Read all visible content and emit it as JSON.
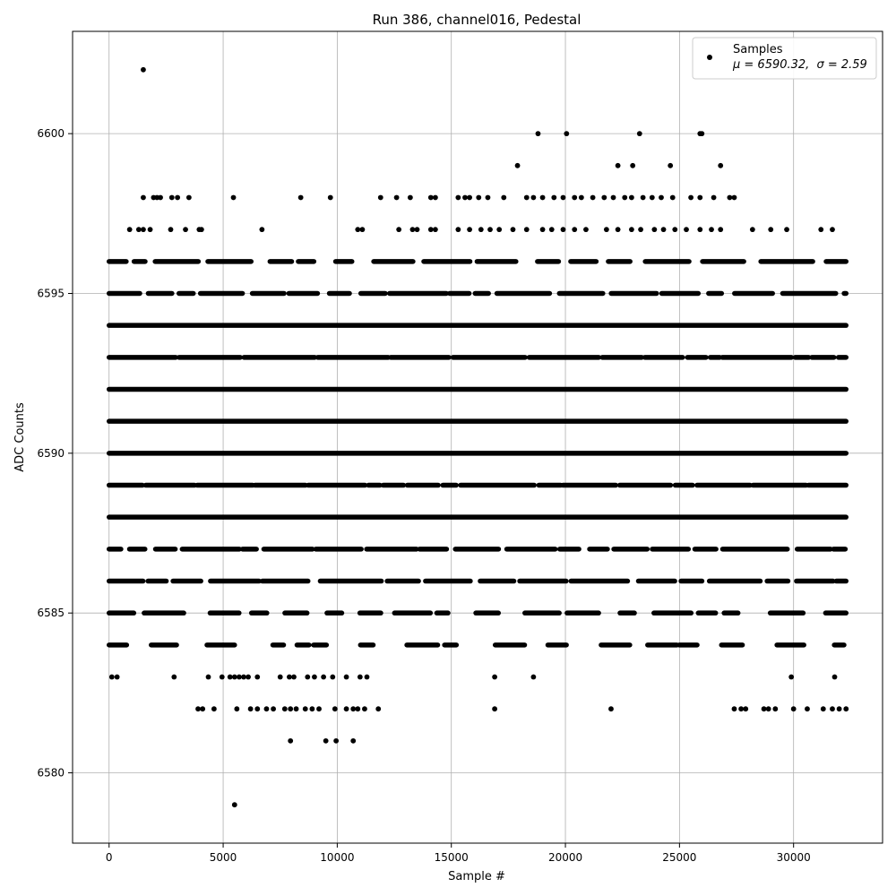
{
  "chart_data": {
    "type": "scatter",
    "title": "Run 386, channel016, Pedestal",
    "xlabel": "Sample #",
    "ylabel": "ADC Counts",
    "xlim": [
      -1600,
      33900
    ],
    "ylim": [
      6577.8,
      6603.2
    ],
    "xticks": [
      0,
      5000,
      10000,
      15000,
      20000,
      25000,
      30000
    ],
    "yticks": [
      6580,
      6585,
      6590,
      6595,
      6600
    ],
    "grid": true,
    "legend": {
      "position": "top-right",
      "series_name": "Samples",
      "stats_mu_label": "μ = 6590.32,",
      "stats_sigma_label": "σ = 2.59"
    },
    "marker_color": "#000000",
    "sample_count": 32300,
    "dense_levels": [
      6584,
      6585,
      6586,
      6587,
      6588,
      6589,
      6590,
      6591,
      6592,
      6593,
      6594,
      6595,
      6596
    ],
    "level_fill": {
      "6584": 0.35,
      "6585": 0.45,
      "6586": 0.8,
      "6587": 0.85,
      "6588": 1.0,
      "6589": 0.95,
      "6590": 1.0,
      "6591": 1.0,
      "6592": 1.0,
      "6593": 0.95,
      "6594": 1.0,
      "6595": 0.8,
      "6596": 0.65
    },
    "outliers": [
      {
        "x": 1500,
        "y": 6602
      },
      {
        "x": 18800,
        "y": 6600
      },
      {
        "x": 20050,
        "y": 6600
      },
      {
        "x": 23250,
        "y": 6600
      },
      {
        "x": 25900,
        "y": 6600
      },
      {
        "x": 25980,
        "y": 6600
      },
      {
        "x": 17900,
        "y": 6599
      },
      {
        "x": 22300,
        "y": 6599
      },
      {
        "x": 22950,
        "y": 6599
      },
      {
        "x": 24600,
        "y": 6599
      },
      {
        "x": 26800,
        "y": 6599
      },
      {
        "x": 1500,
        "y": 6598
      },
      {
        "x": 1950,
        "y": 6598
      },
      {
        "x": 2100,
        "y": 6598
      },
      {
        "x": 2250,
        "y": 6598
      },
      {
        "x": 2750,
        "y": 6598
      },
      {
        "x": 3000,
        "y": 6598
      },
      {
        "x": 3500,
        "y": 6598
      },
      {
        "x": 5450,
        "y": 6598
      },
      {
        "x": 8400,
        "y": 6598
      },
      {
        "x": 9700,
        "y": 6598
      },
      {
        "x": 11900,
        "y": 6598
      },
      {
        "x": 12600,
        "y": 6598
      },
      {
        "x": 13200,
        "y": 6598
      },
      {
        "x": 14100,
        "y": 6598
      },
      {
        "x": 14300,
        "y": 6598
      },
      {
        "x": 15300,
        "y": 6598
      },
      {
        "x": 15600,
        "y": 6598
      },
      {
        "x": 15800,
        "y": 6598
      },
      {
        "x": 16200,
        "y": 6598
      },
      {
        "x": 16600,
        "y": 6598
      },
      {
        "x": 17300,
        "y": 6598
      },
      {
        "x": 18300,
        "y": 6598
      },
      {
        "x": 18600,
        "y": 6598
      },
      {
        "x": 19000,
        "y": 6598
      },
      {
        "x": 19500,
        "y": 6598
      },
      {
        "x": 19900,
        "y": 6598
      },
      {
        "x": 20400,
        "y": 6598
      },
      {
        "x": 20700,
        "y": 6598
      },
      {
        "x": 21200,
        "y": 6598
      },
      {
        "x": 21700,
        "y": 6598
      },
      {
        "x": 22100,
        "y": 6598
      },
      {
        "x": 22600,
        "y": 6598
      },
      {
        "x": 22900,
        "y": 6598
      },
      {
        "x": 23400,
        "y": 6598
      },
      {
        "x": 23800,
        "y": 6598
      },
      {
        "x": 24200,
        "y": 6598
      },
      {
        "x": 24700,
        "y": 6598
      },
      {
        "x": 25500,
        "y": 6598
      },
      {
        "x": 25900,
        "y": 6598
      },
      {
        "x": 26500,
        "y": 6598
      },
      {
        "x": 27200,
        "y": 6598
      },
      {
        "x": 27400,
        "y": 6598
      },
      {
        "x": 900,
        "y": 6597
      },
      {
        "x": 1300,
        "y": 6597
      },
      {
        "x": 1500,
        "y": 6597
      },
      {
        "x": 1800,
        "y": 6597
      },
      {
        "x": 2700,
        "y": 6597
      },
      {
        "x": 3350,
        "y": 6597
      },
      {
        "x": 3950,
        "y": 6597
      },
      {
        "x": 4050,
        "y": 6597
      },
      {
        "x": 6700,
        "y": 6597
      },
      {
        "x": 10900,
        "y": 6597
      },
      {
        "x": 11100,
        "y": 6597
      },
      {
        "x": 12700,
        "y": 6597
      },
      {
        "x": 13300,
        "y": 6597
      },
      {
        "x": 13500,
        "y": 6597
      },
      {
        "x": 14100,
        "y": 6597
      },
      {
        "x": 14300,
        "y": 6597
      },
      {
        "x": 15300,
        "y": 6597
      },
      {
        "x": 15800,
        "y": 6597
      },
      {
        "x": 16300,
        "y": 6597
      },
      {
        "x": 16700,
        "y": 6597
      },
      {
        "x": 17100,
        "y": 6597
      },
      {
        "x": 17700,
        "y": 6597
      },
      {
        "x": 18300,
        "y": 6597
      },
      {
        "x": 19000,
        "y": 6597
      },
      {
        "x": 19400,
        "y": 6597
      },
      {
        "x": 19900,
        "y": 6597
      },
      {
        "x": 20400,
        "y": 6597
      },
      {
        "x": 20900,
        "y": 6597
      },
      {
        "x": 21800,
        "y": 6597
      },
      {
        "x": 22300,
        "y": 6597
      },
      {
        "x": 22900,
        "y": 6597
      },
      {
        "x": 23300,
        "y": 6597
      },
      {
        "x": 23900,
        "y": 6597
      },
      {
        "x": 24300,
        "y": 6597
      },
      {
        "x": 24800,
        "y": 6597
      },
      {
        "x": 25300,
        "y": 6597
      },
      {
        "x": 25900,
        "y": 6597
      },
      {
        "x": 26400,
        "y": 6597
      },
      {
        "x": 26800,
        "y": 6597
      },
      {
        "x": 28200,
        "y": 6597
      },
      {
        "x": 29000,
        "y": 6597
      },
      {
        "x": 29700,
        "y": 6597
      },
      {
        "x": 31200,
        "y": 6597
      },
      {
        "x": 31700,
        "y": 6597
      },
      {
        "x": 120,
        "y": 6583
      },
      {
        "x": 350,
        "y": 6583
      },
      {
        "x": 2850,
        "y": 6583
      },
      {
        "x": 4350,
        "y": 6583
      },
      {
        "x": 4950,
        "y": 6583
      },
      {
        "x": 5300,
        "y": 6583
      },
      {
        "x": 5500,
        "y": 6583
      },
      {
        "x": 5700,
        "y": 6583
      },
      {
        "x": 5900,
        "y": 6583
      },
      {
        "x": 6100,
        "y": 6583
      },
      {
        "x": 6500,
        "y": 6583
      },
      {
        "x": 7500,
        "y": 6583
      },
      {
        "x": 7900,
        "y": 6583
      },
      {
        "x": 8100,
        "y": 6583
      },
      {
        "x": 8700,
        "y": 6583
      },
      {
        "x": 9000,
        "y": 6583
      },
      {
        "x": 9400,
        "y": 6583
      },
      {
        "x": 9800,
        "y": 6583
      },
      {
        "x": 10400,
        "y": 6583
      },
      {
        "x": 11000,
        "y": 6583
      },
      {
        "x": 11300,
        "y": 6583
      },
      {
        "x": 16900,
        "y": 6583
      },
      {
        "x": 18600,
        "y": 6583
      },
      {
        "x": 29900,
        "y": 6583
      },
      {
        "x": 31800,
        "y": 6583
      },
      {
        "x": 3900,
        "y": 6582
      },
      {
        "x": 4100,
        "y": 6582
      },
      {
        "x": 4600,
        "y": 6582
      },
      {
        "x": 5600,
        "y": 6582
      },
      {
        "x": 6200,
        "y": 6582
      },
      {
        "x": 6500,
        "y": 6582
      },
      {
        "x": 6900,
        "y": 6582
      },
      {
        "x": 7200,
        "y": 6582
      },
      {
        "x": 7700,
        "y": 6582
      },
      {
        "x": 7950,
        "y": 6582
      },
      {
        "x": 8200,
        "y": 6582
      },
      {
        "x": 8600,
        "y": 6582
      },
      {
        "x": 8900,
        "y": 6582
      },
      {
        "x": 9200,
        "y": 6582
      },
      {
        "x": 9900,
        "y": 6582
      },
      {
        "x": 10400,
        "y": 6582
      },
      {
        "x": 10700,
        "y": 6582
      },
      {
        "x": 10900,
        "y": 6582
      },
      {
        "x": 11200,
        "y": 6582
      },
      {
        "x": 11800,
        "y": 6582
      },
      {
        "x": 16900,
        "y": 6582
      },
      {
        "x": 22000,
        "y": 6582
      },
      {
        "x": 27400,
        "y": 6582
      },
      {
        "x": 27700,
        "y": 6582
      },
      {
        "x": 27900,
        "y": 6582
      },
      {
        "x": 28700,
        "y": 6582
      },
      {
        "x": 28900,
        "y": 6582
      },
      {
        "x": 29200,
        "y": 6582
      },
      {
        "x": 30000,
        "y": 6582
      },
      {
        "x": 30600,
        "y": 6582
      },
      {
        "x": 31300,
        "y": 6582
      },
      {
        "x": 31700,
        "y": 6582
      },
      {
        "x": 32000,
        "y": 6582
      },
      {
        "x": 32300,
        "y": 6582
      },
      {
        "x": 7950,
        "y": 6581
      },
      {
        "x": 9500,
        "y": 6581
      },
      {
        "x": 9950,
        "y": 6581
      },
      {
        "x": 10700,
        "y": 6581
      },
      {
        "x": 5500,
        "y": 6579
      }
    ]
  }
}
